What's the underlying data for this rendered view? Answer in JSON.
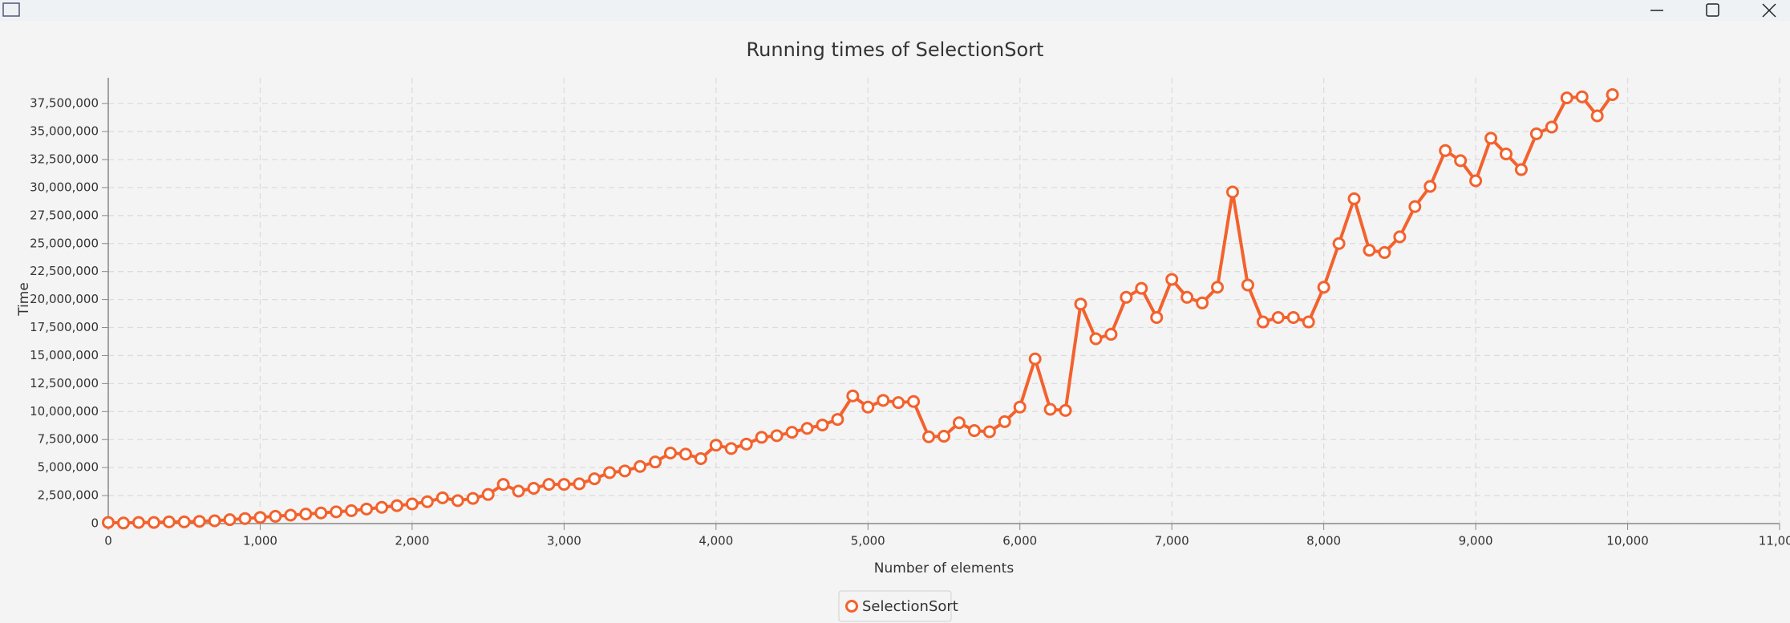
{
  "chart_data": {
    "type": "line",
    "title": "Running times of SelectionSort",
    "x_label": "Number of elements",
    "y_label": "Time",
    "x": [
      0,
      100,
      200,
      300,
      400,
      500,
      600,
      700,
      800,
      900,
      1000,
      1100,
      1200,
      1300,
      1400,
      1500,
      1600,
      1700,
      1800,
      1900,
      2000,
      2100,
      2200,
      2300,
      2400,
      2500,
      2600,
      2700,
      2800,
      2900,
      3000,
      3100,
      3200,
      3300,
      3400,
      3500,
      3600,
      3700,
      3800,
      3900,
      4000,
      4100,
      4200,
      4300,
      4400,
      4500,
      4600,
      4700,
      4800,
      4900,
      5000,
      5100,
      5200,
      5300,
      5400,
      5500,
      5600,
      5700,
      5800,
      5900,
      6000,
      6100,
      6200,
      6300,
      6400,
      6500,
      6600,
      6700,
      6800,
      6900,
      7000,
      7100,
      7200,
      7300,
      7400,
      7500,
      7600,
      7700,
      7800,
      7900,
      8000,
      8100,
      8200,
      8300,
      8400,
      8500,
      8600,
      8700,
      8800,
      8900,
      9000,
      9100,
      9200,
      9300,
      9400,
      9500,
      9600,
      9700,
      9800,
      9900
    ],
    "series": [
      {
        "name": "SelectionSort",
        "color": "#f3622d",
        "values": [
          100000,
          50000,
          100000,
          100000,
          150000,
          150000,
          200000,
          250000,
          350000,
          450000,
          550000,
          650000,
          750000,
          850000,
          950000,
          1050000,
          1150000,
          1300000,
          1450000,
          1600000,
          1750000,
          1950000,
          2300000,
          2050000,
          2250000,
          2600000,
          3500000,
          2900000,
          3150000,
          3500000,
          3500000,
          3550000,
          4000000,
          4550000,
          4700000,
          5100000,
          5500000,
          6300000,
          6200000,
          5800000,
          7000000,
          6700000,
          7100000,
          7700000,
          7850000,
          8150000,
          8500000,
          8800000,
          9300000,
          11400000,
          10400000,
          11000000,
          10800000,
          10900000,
          7750000,
          7800000,
          9000000,
          8300000,
          8200000,
          9100000,
          10400000,
          14700000,
          10200000,
          10100000,
          19600000,
          16500000,
          16900000,
          20200000,
          21000000,
          18400000,
          21800000,
          20200000,
          19700000,
          21100000,
          29600000,
          21300000,
          18000000,
          18400000,
          18400000,
          18000000,
          21100000,
          25000000,
          29000000,
          24400000,
          24200000,
          25600000,
          28300000,
          30100000,
          33300000,
          32400000,
          30600000,
          34400000,
          33000000,
          31600000,
          34800000,
          35400000,
          38000000,
          38100000,
          36400000,
          38300000
        ]
      }
    ],
    "xlim": [
      0,
      11000
    ],
    "xticks": [
      0,
      {
        "value": 1000,
        "label": "1,000"
      },
      {
        "value": 2000,
        "label": "2,000"
      },
      {
        "value": 3000,
        "label": "3,000"
      },
      {
        "value": 4000,
        "label": "4,000"
      },
      {
        "value": 5000,
        "label": "5,000"
      },
      {
        "value": 6000,
        "label": "6,000"
      },
      {
        "value": 7000,
        "label": "7,000"
      },
      {
        "value": 8000,
        "label": "8,000"
      },
      {
        "value": 9000,
        "label": "9,000"
      },
      {
        "value": 10000,
        "label": "10,000"
      },
      {
        "value": 11000,
        "label": "11,000"
      }
    ],
    "ylim": [
      0,
      39800000
    ],
    "yticks": [
      0,
      {
        "value": 2500000,
        "label": "2,500,000"
      },
      {
        "value": 5000000,
        "label": "5,000,000"
      },
      {
        "value": 7500000,
        "label": "7,500,000"
      },
      {
        "value": 10000000,
        "label": "10,000,000"
      },
      {
        "value": 12500000,
        "label": "12,500,000"
      },
      {
        "value": 15000000,
        "label": "15,000,000"
      },
      {
        "value": 17500000,
        "label": "17,500,000"
      },
      {
        "value": 20000000,
        "label": "20,000,000"
      },
      {
        "value": 22500000,
        "label": "22,500,000"
      },
      {
        "value": 25000000,
        "label": "25,000,000"
      },
      {
        "value": 27500000,
        "label": "27,500,000"
      },
      {
        "value": 30000000,
        "label": "30,000,000"
      },
      {
        "value": 32500000,
        "label": "32,500,000"
      },
      {
        "value": 35000000,
        "label": "35,000,000"
      },
      {
        "value": 37500000,
        "label": "37,500,000"
      }
    ],
    "grid": true,
    "legend": "bottom"
  }
}
